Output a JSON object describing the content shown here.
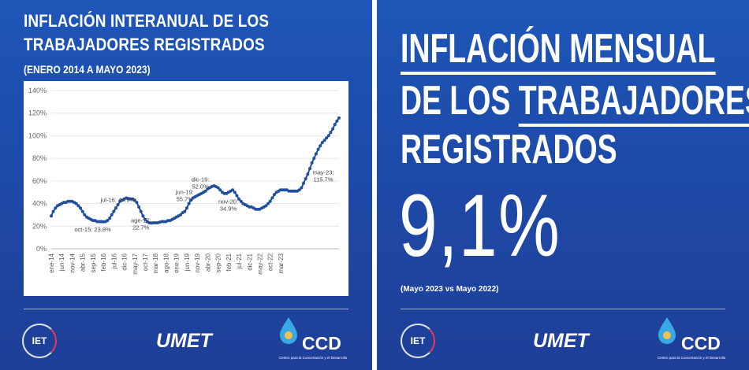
{
  "left": {
    "title_line1": "INFLACIÓN INTERANUAL DE LOS",
    "title_line2": "TRABAJADORES REGISTRADOS",
    "subtitle": "(ENERO 2014 A MAYO 2023)"
  },
  "right": {
    "line1": "INFLACIÓN MENSUAL",
    "line2_a": "DE LOS ",
    "line2_b": "TRABAJADORES",
    "line3": "REGISTRADOS",
    "big_value": "9,1%",
    "note": "(Mayo 2023 vs Mayo 2022)"
  },
  "logos": {
    "iet": "IET",
    "umet": "UMET",
    "ccd": "CCD",
    "ccd_sub": "Centro para la Concertación y el Desarrollo"
  },
  "colors": {
    "panel_bg": "#1e56b8",
    "line": "#1f4f9e",
    "accent_red": "#e23b5c"
  },
  "chart_data": {
    "type": "line",
    "ylim": [
      0,
      140
    ],
    "yticks": [
      0,
      20,
      40,
      60,
      80,
      100,
      120,
      140
    ],
    "ytick_labels": [
      "0%",
      "20%",
      "40%",
      "60%",
      "80%",
      "100%",
      "120%",
      "140%"
    ],
    "grid": true,
    "xtick_labels": [
      "ene-14",
      "jun-14",
      "nov-14",
      "abr-15",
      "sep-15",
      "feb-16",
      "jul-16",
      "dic-16",
      "may-17",
      "oct-17",
      "mar-18",
      "ago-18",
      "ene-19",
      "jun-19",
      "nov-19",
      "abr-20",
      "sep-20",
      "feb-21",
      "jul-21",
      "dic-21",
      "may-22",
      "oct-22",
      "mar-23"
    ],
    "series": [
      {
        "values": [
          29,
          33,
          36,
          38,
          39,
          40,
          41,
          41,
          42,
          42,
          42,
          41,
          40,
          38,
          36,
          33,
          30,
          28,
          27,
          26,
          25,
          25,
          24,
          24,
          24,
          23.8,
          24,
          25,
          27,
          30,
          33,
          36,
          39,
          42,
          43,
          44,
          44.9,
          44.5,
          44,
          44,
          43,
          41,
          37,
          33,
          29,
          26,
          24,
          23,
          22.7,
          23,
          23,
          23,
          23.5,
          24,
          24,
          24,
          25,
          25,
          26,
          27,
          28,
          29,
          30,
          32,
          33,
          36,
          40,
          43,
          45,
          46,
          47,
          48,
          49,
          50,
          51,
          53,
          54,
          55,
          55.7,
          55,
          54,
          52,
          50,
          49,
          49,
          50,
          51,
          52,
          50,
          47,
          44,
          42,
          40,
          39,
          38,
          37,
          37,
          36,
          35,
          34.9,
          35,
          36,
          37,
          38,
          40,
          42,
          45,
          48,
          50,
          51,
          52,
          52,
          52,
          52,
          51,
          51,
          51,
          51,
          51,
          52,
          54,
          58,
          62,
          66,
          71,
          76,
          80,
          84,
          88,
          91,
          94,
          96,
          98,
          100,
          103,
          106,
          110,
          113,
          115.7
        ]
      }
    ],
    "annotations": [
      {
        "label": "oct-15: 23.8%"
      },
      {
        "label": "jul-16: 44.9%"
      },
      {
        "label": "age-17:"
      },
      {
        "label": "22.7%"
      },
      {
        "label": "jun-19:"
      },
      {
        "label": "55.7%"
      },
      {
        "label": "dic-19:"
      },
      {
        "label": "52.0%"
      },
      {
        "label": "nov-20:"
      },
      {
        "label": "34.9%"
      },
      {
        "label": "may-23:"
      },
      {
        "label": "115.7%"
      }
    ]
  }
}
